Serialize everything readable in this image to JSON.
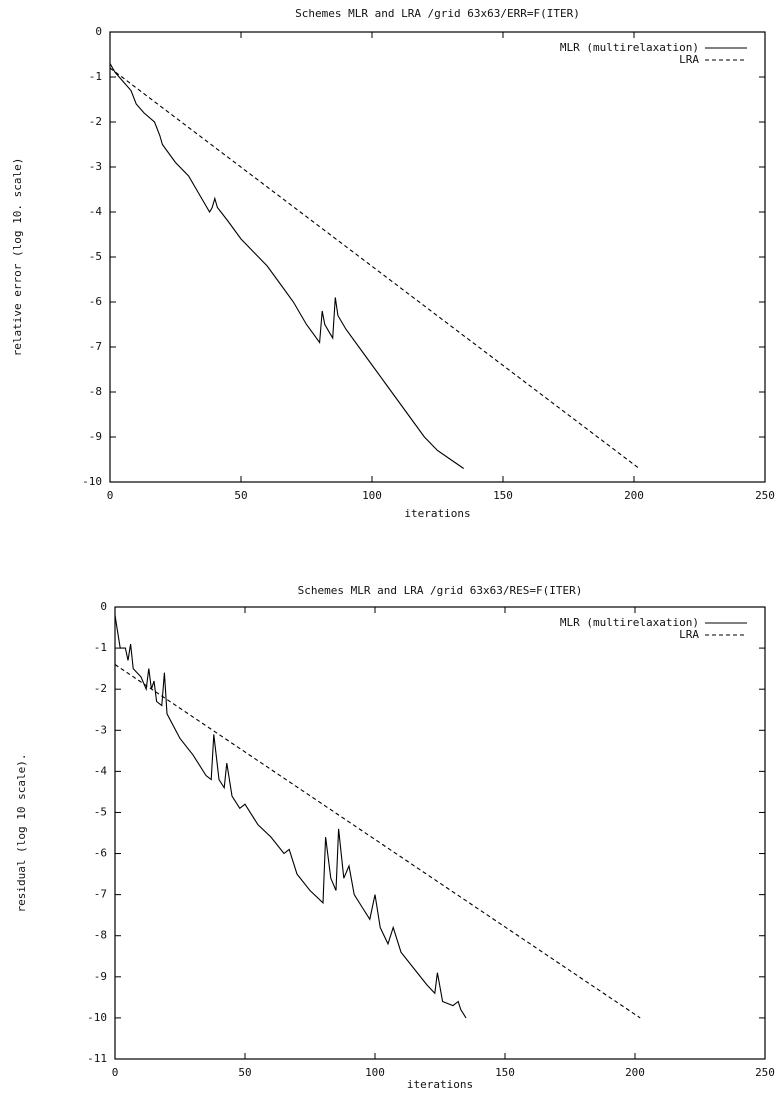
{
  "chart_data": [
    {
      "type": "line",
      "title": "Schemes MLR and LRA /grid 63x63/ERR=F(ITER)",
      "xlabel": "iterations",
      "ylabel": "relative error (log 10. scale)",
      "xlim": [
        0,
        250
      ],
      "xticks": [
        0,
        50,
        100,
        150,
        200,
        250
      ],
      "ylim": [
        -10,
        0
      ],
      "yticks": [
        -10,
        -9,
        -8,
        -7,
        -6,
        -5,
        -4,
        -3,
        -2,
        -1,
        0
      ],
      "legend": "upper right",
      "series": [
        {
          "name": "MLR (multirelaxation)",
          "color": "#000000",
          "line_style": "solid",
          "x": [
            0,
            2,
            5,
            8,
            10,
            13,
            17,
            19,
            20,
            25,
            30,
            35,
            38,
            39,
            40,
            41,
            45,
            50,
            55,
            60,
            65,
            70,
            75,
            80,
            81,
            82,
            85,
            86,
            87,
            90,
            95,
            100,
            105,
            110,
            115,
            120,
            125,
            130,
            135
          ],
          "values": [
            -0.7,
            -0.9,
            -1.1,
            -1.3,
            -1.6,
            -1.8,
            -2.0,
            -2.3,
            -2.5,
            -2.9,
            -3.2,
            -3.7,
            -4.0,
            -3.9,
            -3.7,
            -3.9,
            -4.2,
            -4.6,
            -4.9,
            -5.2,
            -5.6,
            -6.0,
            -6.5,
            -6.9,
            -6.2,
            -6.5,
            -6.8,
            -5.9,
            -6.3,
            -6.6,
            -7.0,
            -7.4,
            -7.8,
            -8.2,
            -8.6,
            -9.0,
            -9.3,
            -9.5,
            -9.7
          ]
        },
        {
          "name": "LRA",
          "color": "#000000",
          "line_style": "dashed",
          "x": [
            0,
            202
          ],
          "values": [
            -0.8,
            -9.7
          ]
        }
      ]
    },
    {
      "type": "line",
      "title": "Schemes MLR and LRA /grid  63x63/RES=F(ITER)",
      "xlabel": "iterations",
      "ylabel": "residual (log 10 scale).",
      "xlim": [
        0,
        250
      ],
      "xticks": [
        0,
        50,
        100,
        150,
        200,
        250
      ],
      "ylim": [
        -11,
        0
      ],
      "yticks": [
        -11,
        -10,
        -9,
        -8,
        -7,
        -6,
        -5,
        -4,
        -3,
        -2,
        -1,
        0
      ],
      "legend": "upper right",
      "series": [
        {
          "name": "MLR (multirelaxation)",
          "color": "#000000",
          "line_style": "solid",
          "x": [
            0,
            2,
            4,
            5,
            6,
            7,
            10,
            12,
            13,
            14,
            15,
            16,
            18,
            19,
            20,
            25,
            30,
            35,
            37,
            38,
            40,
            42,
            43,
            45,
            48,
            50,
            55,
            60,
            65,
            67,
            70,
            75,
            80,
            81,
            83,
            85,
            86,
            88,
            90,
            92,
            95,
            98,
            100,
            102,
            105,
            107,
            110,
            115,
            120,
            123,
            124,
            126,
            130,
            132,
            133,
            135
          ],
          "values": [
            -0.2,
            -1.0,
            -1.0,
            -1.3,
            -0.9,
            -1.5,
            -1.7,
            -2.0,
            -1.5,
            -2.0,
            -1.8,
            -2.3,
            -2.4,
            -1.6,
            -2.6,
            -3.2,
            -3.6,
            -4.1,
            -4.2,
            -3.1,
            -4.2,
            -4.4,
            -3.8,
            -4.6,
            -4.9,
            -4.8,
            -5.3,
            -5.6,
            -6.0,
            -5.9,
            -6.5,
            -6.9,
            -7.2,
            -5.6,
            -6.6,
            -6.9,
            -5.4,
            -6.6,
            -6.3,
            -7.0,
            -7.3,
            -7.6,
            -7.0,
            -7.8,
            -8.2,
            -7.8,
            -8.4,
            -8.8,
            -9.2,
            -9.4,
            -8.9,
            -9.6,
            -9.7,
            -9.6,
            -9.8,
            -10.0
          ]
        },
        {
          "name": "LRA",
          "color": "#000000",
          "line_style": "dashed",
          "x": [
            0,
            202
          ],
          "values": [
            -1.4,
            -10.0
          ]
        }
      ]
    }
  ]
}
